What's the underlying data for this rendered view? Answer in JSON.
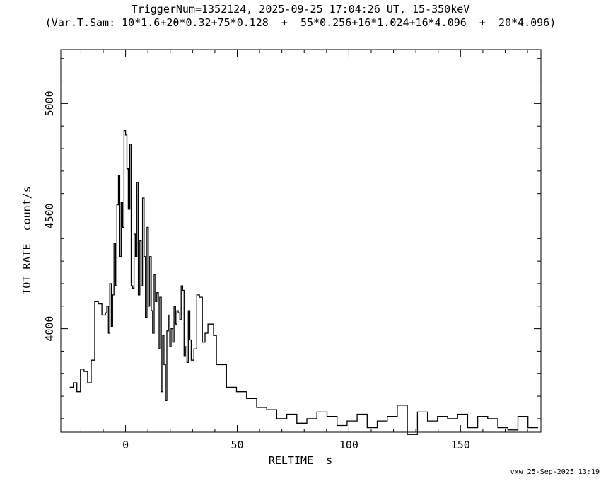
{
  "chart_data": {
    "type": "line",
    "step": true,
    "title": "TriggerNum=1352124, 2025-09-25 17:04:26 UT, 15-350keV",
    "subtitle": "(Var.T.Sam: 10*1.6+20*0.32+75*0.128  +  55*0.256+16*1.024+16*4.096  +  20*4.096)",
    "xlabel": "RELTIME  s",
    "ylabel": "TOT_RATE  count/s",
    "xlim": [
      -29,
      186
    ],
    "ylim": [
      3540,
      5240
    ],
    "xticks": [
      0,
      50,
      100,
      150
    ],
    "yticks": [
      4000,
      4500,
      5000
    ],
    "grid": false,
    "series": [
      {
        "x": [
          -25,
          -23.4,
          -21.8,
          -20.2,
          -18.6,
          -17,
          -15.4,
          -13.8,
          -12.2,
          -10.6,
          -9,
          -8.4,
          -7.7,
          -7.1,
          -6.4,
          -5.8,
          -5.2,
          -4.5,
          -3.9,
          -3.2,
          -2.6,
          -2,
          -1.3,
          -0.7,
          0,
          0.6,
          1.2,
          1.9,
          2.5,
          3.2,
          3.8,
          4.4,
          5.1,
          5.7,
          6.4,
          7,
          7.6,
          8.3,
          8.9,
          9.6,
          10.2,
          10.8,
          11.5,
          12.1,
          12.8,
          13.4,
          14,
          14.7,
          15.3,
          16,
          16.6,
          17.2,
          17.9,
          18.5,
          19.2,
          19.8,
          20.4,
          21.1,
          21.7,
          22.4,
          23,
          23.6,
          24.3,
          24.9,
          25.6,
          26.2,
          26.8,
          27.5,
          28.1,
          28.8,
          29.4,
          30.6,
          31.9,
          33.1,
          34.4,
          35.6,
          36.9,
          38.2,
          39.4,
          40.7,
          45.2,
          49.7,
          54.2,
          58.7,
          63.2,
          67.7,
          72.2,
          76.7,
          81.2,
          85.7,
          90.2,
          94.7,
          99.2,
          103.7,
          108.2,
          112.7,
          117.2,
          121.7,
          126.2,
          130.7,
          135.2,
          139.7,
          144.2,
          148.7,
          153.2,
          157.7,
          162.2,
          166.7,
          171.2,
          175.7,
          180.2
        ],
        "values": [
          3740,
          3760,
          3720,
          3820,
          3810,
          3760,
          3860,
          4120,
          4110,
          4060,
          4070,
          4100,
          3980,
          4200,
          4010,
          4150,
          4380,
          4190,
          4550,
          4680,
          4320,
          4560,
          4450,
          4880,
          4860,
          4710,
          4530,
          4820,
          4190,
          4180,
          4420,
          4320,
          4650,
          4150,
          4390,
          4190,
          4580,
          4320,
          4050,
          4450,
          4100,
          4320,
          4080,
          3980,
          4240,
          4120,
          4160,
          3910,
          4140,
          3720,
          3970,
          3840,
          3680,
          3990,
          4060,
          3920,
          4000,
          3940,
          4100,
          4020,
          4080,
          4070,
          4040,
          4190,
          4170,
          3880,
          3920,
          3850,
          4080,
          3950,
          3860,
          3910,
          4150,
          4140,
          3940,
          3980,
          4020,
          4020,
          3970,
          3840,
          3740,
          3720,
          3690,
          3650,
          3640,
          3600,
          3620,
          3580,
          3600,
          3630,
          3610,
          3570,
          3590,
          3620,
          3560,
          3590,
          3610,
          3660,
          3530,
          3630,
          3590,
          3610,
          3600,
          3620,
          3560,
          3610,
          3600,
          3560,
          3550,
          3610,
          3560
        ]
      }
    ]
  },
  "footer": "vxw 25-Sep-2025 13:19"
}
